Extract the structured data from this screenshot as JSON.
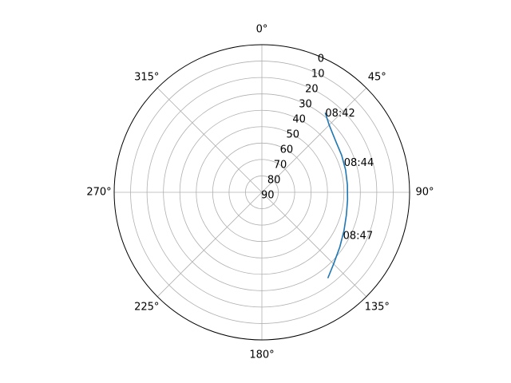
{
  "chart_data": {
    "type": "line",
    "projection": "polar",
    "theta_zero_location": "N",
    "theta_direction": "clockwise",
    "radial_axis": "elevation (0 at outer edge, 90 at center)",
    "rlim": [
      90,
      0
    ],
    "radial_ticks": [
      "0",
      "10",
      "20",
      "30",
      "40",
      "50",
      "60",
      "70",
      "80",
      "90"
    ],
    "angle_ticks": [
      "0°",
      "45°",
      "90°",
      "135°",
      "180°",
      "225°",
      "270°",
      "315°"
    ],
    "grid": true,
    "series": [
      {
        "color": "#1f77b4",
        "points": [
          {
            "azimuth": 38.5,
            "elevation": 28
          },
          {
            "azimuth": 45,
            "elevation": 32
          },
          {
            "azimuth": 55,
            "elevation": 35.2
          },
          {
            "azimuth": 65,
            "elevation": 36.4
          },
          {
            "azimuth": 75,
            "elevation": 37.2
          },
          {
            "azimuth": 85,
            "elevation": 37.7
          },
          {
            "azimuth": 95,
            "elevation": 37.6
          },
          {
            "azimuth": 105,
            "elevation": 36.7
          },
          {
            "azimuth": 115,
            "elevation": 34.8
          },
          {
            "azimuth": 125,
            "elevation": 32
          },
          {
            "azimuth": 135,
            "elevation": 28.2
          },
          {
            "azimuth": 142.5,
            "elevation": 24
          }
        ]
      }
    ],
    "annotations": [
      {
        "text": "08:42",
        "azimuth": 38.5,
        "elevation": 28
      },
      {
        "text": "08:44",
        "azimuth": 70,
        "elevation": 36.8
      },
      {
        "text": "08:47",
        "azimuth": 118,
        "elevation": 34
      }
    ]
  }
}
